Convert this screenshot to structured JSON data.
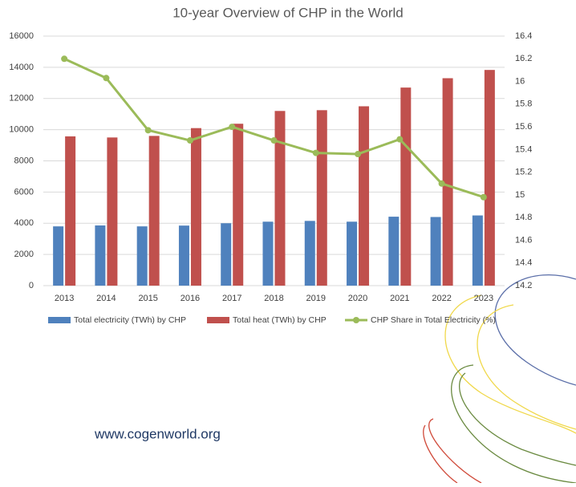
{
  "chart_data": {
    "type": "bar",
    "title": "10-year Overview of CHP in the World",
    "categories": [
      "2013",
      "2014",
      "2015",
      "2016",
      "2017",
      "2018",
      "2019",
      "2020",
      "2021",
      "2022",
      "2023"
    ],
    "series": [
      {
        "name": "Total electricity (TWh) by CHP",
        "color": "#4f81bd",
        "type": "bar",
        "values": [
          3800,
          3860,
          3800,
          3850,
          4000,
          4100,
          4150,
          4100,
          4420,
          4400,
          4500
        ]
      },
      {
        "name": "Total heat (TWh) by CHP",
        "color": "#c0504d",
        "type": "bar",
        "values": [
          9570,
          9500,
          9600,
          10100,
          10380,
          11200,
          11250,
          11500,
          12700,
          13300,
          13830
        ]
      },
      {
        "name": "CHP Share in Total Electricity (%)",
        "color": "#9bbb59",
        "type": "line",
        "axis": "y2",
        "values": [
          16.2,
          16.03,
          15.57,
          15.48,
          15.6,
          15.48,
          15.37,
          15.36,
          15.49,
          15.1,
          14.98
        ]
      }
    ],
    "ylim": [
      0,
      16000
    ],
    "yticks": [
      0,
      2000,
      4000,
      6000,
      8000,
      10000,
      12000,
      14000,
      16000
    ],
    "y2lim": [
      14.2,
      16.4
    ],
    "y2ticks": [
      14.2,
      14.4,
      14.6,
      14.8,
      15,
      15.2,
      15.4,
      15.6,
      15.8,
      16,
      16.2,
      16.4
    ],
    "grid": true,
    "legend": "bottom",
    "annotation": "www.cogenworld.org"
  }
}
